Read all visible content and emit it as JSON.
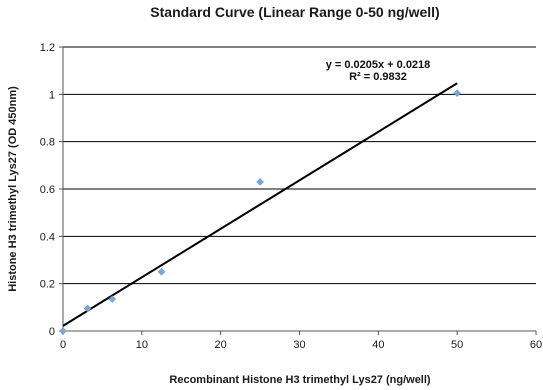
{
  "chart_data": {
    "type": "scatter",
    "title": "Standard Curve (Linear Range 0-50 ng/well)",
    "xlabel": "Recombinant Histone H3 trimethyl Lys27 (ng/well)",
    "ylabel": "Histone H3 trimethyl Lys27 (OD 450nm)",
    "xlim": [
      0,
      60
    ],
    "ylim": [
      0,
      1.2
    ],
    "x_ticks": [
      0,
      10,
      20,
      30,
      40,
      50,
      60
    ],
    "y_ticks": [
      0,
      0.2,
      0.4,
      0.6,
      0.8,
      1,
      1.2
    ],
    "x_tick_labels": [
      "0",
      "10",
      "20",
      "30",
      "40",
      "50",
      "60"
    ],
    "y_tick_labels": [
      "0",
      "0.2",
      "0.4",
      "0.6",
      "0.8",
      "1",
      "1.2"
    ],
    "grid": "horizontal",
    "series": [
      {
        "x": [
          0,
          3.125,
          6.25,
          12.5,
          25,
          50
        ],
        "y": [
          0,
          0.095,
          0.135,
          0.25,
          0.63,
          1.005
        ],
        "color": "#7ea7d8",
        "marker": "diamond"
      }
    ],
    "trendline": {
      "slope": 0.0205,
      "intercept": 0.0218,
      "x_range": [
        0,
        50
      ],
      "color": "#000000"
    },
    "annotations": {
      "equation": "y = 0.0205x + 0.0218",
      "r_squared": "R² = 0.9832"
    }
  }
}
